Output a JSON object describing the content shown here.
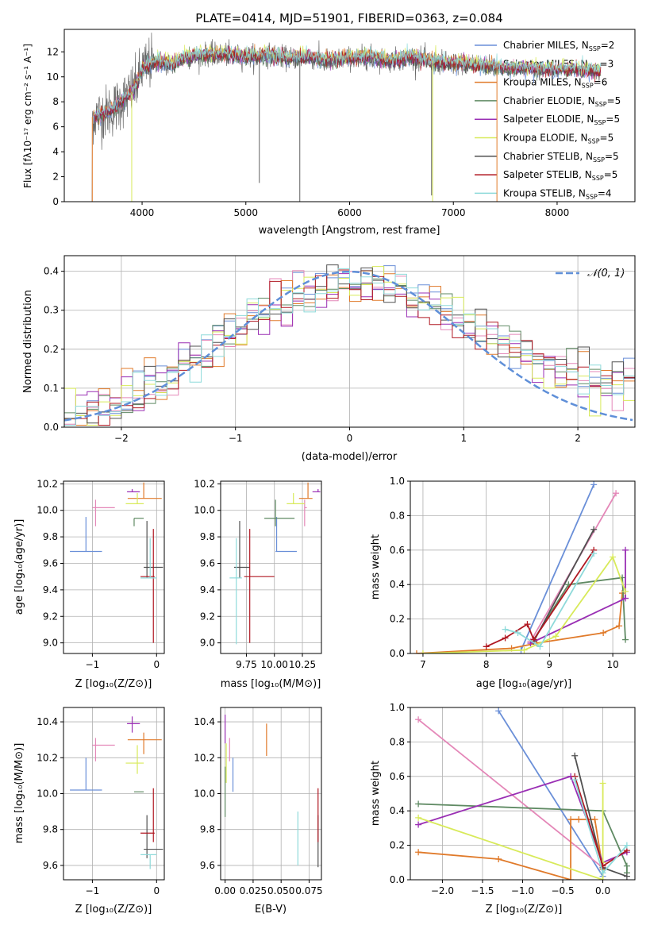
{
  "colors": {
    "chabrier_miles": "#6a8fd8",
    "salpeter_miles": "#e487b8",
    "kroupa_miles": "#e07a2a",
    "chabrier_elodie": "#5f8a63",
    "salpeter_elodie": "#9a2fb4",
    "kroupa_elodie": "#d8ea5a",
    "chabrier_stelib": "#505050",
    "salpeter_stelib": "#b01822",
    "kroupa_stelib": "#8edada",
    "normal": "#5f8fd8",
    "grid": "#b0b0b0"
  },
  "chart_data": [
    {
      "id": "spectrum",
      "type": "line",
      "title": "PLATE=0414, MJD=51901, FIBERID=0363, z=0.084",
      "xlabel": "wavelength [Angstrom, rest frame]",
      "ylabel": "Flux [fλ10⁻¹⁷ erg cm⁻² s⁻¹ A⁻¹]",
      "xlim": [
        3250,
        8750
      ],
      "ylim": [
        0,
        13.8
      ],
      "xticks": [
        4000,
        5000,
        6000,
        7000,
        8000
      ],
      "yticks": [
        0,
        2,
        4,
        6,
        8,
        10,
        12
      ],
      "grid": false,
      "legend_position": "top-right",
      "series": [
        {
          "name": "Chabrier MILES, N_SSP=2",
          "label_main": "Chabrier MILES, N",
          "label_sub": "SSP",
          "label_end": "=2",
          "color_key": "chabrier_miles"
        },
        {
          "name": "Salpeter MILES, N_SSP=3",
          "label_main": "Salpeter MILES, N",
          "label_sub": "SSP",
          "label_end": "=3",
          "color_key": "salpeter_miles"
        },
        {
          "name": "Kroupa MILES, N_SSP=6",
          "label_main": "Kroupa MILES, N",
          "label_sub": "SSP",
          "label_end": "=6",
          "color_key": "kroupa_miles"
        },
        {
          "name": "Chabrier ELODIE, N_SSP=5",
          "label_main": "Chabrier ELODIE, N",
          "label_sub": "SSP",
          "label_end": "=5",
          "color_key": "chabrier_elodie"
        },
        {
          "name": "Salpeter ELODIE, N_SSP=5",
          "label_main": "Salpeter ELODIE, N",
          "label_sub": "SSP",
          "label_end": "=5",
          "color_key": "salpeter_elodie"
        },
        {
          "name": "Kroupa ELODIE, N_SSP=5",
          "label_main": "Kroupa ELODIE, N",
          "label_sub": "SSP",
          "label_end": "=5",
          "color_key": "kroupa_elodie"
        },
        {
          "name": "Chabrier STELIB, N_SSP=5",
          "label_main": "Chabrier STELIB, N",
          "label_sub": "SSP",
          "label_end": "=5",
          "color_key": "chabrier_stelib"
        },
        {
          "name": "Salpeter STELIB, N_SSP=5",
          "label_main": "Salpeter STELIB, N",
          "label_sub": "SSP",
          "label_end": "=5",
          "color_key": "salpeter_stelib"
        },
        {
          "name": "Kroupa STELIB, N_SSP=4",
          "label_main": "Kroupa STELIB, N",
          "label_sub": "SSP",
          "label_end": "=4",
          "color_key": "kroupa_stelib"
        }
      ],
      "continuum": {
        "x": [
          3520,
          3600,
          3700,
          3800,
          3900,
          3950,
          4000,
          4100,
          4200,
          4300,
          4400,
          4600,
          4800,
          5000,
          5200,
          5400,
          5600,
          5800,
          6000,
          6200,
          6400,
          6600,
          6800,
          7000,
          7200,
          7400,
          7600,
          7800,
          8000,
          8200,
          8400
        ],
        "y": [
          6.8,
          7.0,
          7.3,
          8.0,
          8.8,
          9.4,
          10.6,
          11.2,
          11.2,
          11.0,
          11.5,
          11.8,
          11.8,
          11.6,
          11.8,
          11.5,
          11.6,
          11.3,
          11.5,
          11.6,
          11.3,
          11.6,
          11.2,
          11.1,
          11.0,
          10.8,
          10.7,
          10.7,
          10.6,
          10.6,
          10.5
        ]
      },
      "data_range": [
        3500,
        7420
      ],
      "model_range": [
        3520,
        8420
      ]
    },
    {
      "id": "residuals",
      "type": "histogram",
      "xlabel": "(data-model)/error",
      "ylabel": "Normed distribution",
      "xlim": [
        -2.5,
        2.5
      ],
      "ylim": [
        0,
        0.44
      ],
      "xticks": [
        -2,
        -1,
        0,
        1,
        2
      ],
      "yticks": [
        0.0,
        0.1,
        0.2,
        0.3,
        0.4
      ],
      "grid": true,
      "bin_width": 0.1,
      "legend": "𝒩(0, 1)",
      "legend_position": "top-right",
      "curve": {
        "type": "normal",
        "mean": 0,
        "sigma": 1
      }
    },
    {
      "id": "age_vs_Z",
      "type": "errorbar",
      "xlabel": "Z [log₁₀(Z/Z⊙)]",
      "ylabel": "age  [log₁₀(age/yr)]",
      "xlim": [
        -1.45,
        0.12
      ],
      "ylim": [
        8.92,
        10.22
      ],
      "xticks": [
        -1,
        0
      ],
      "yticks": [
        9.0,
        9.2,
        9.4,
        9.6,
        9.8,
        10.0,
        10.2
      ],
      "grid": true,
      "points": [
        {
          "c": "chabrier_miles",
          "x": -1.1,
          "xl": 0.25,
          "xh": 0.25,
          "y": 9.69,
          "yl": 0,
          "yh": 0.26
        },
        {
          "c": "salpeter_miles",
          "x": -0.95,
          "xl": 0.05,
          "xh": 0.3,
          "y": 10.02,
          "yl": 0.14,
          "yh": 0.06
        },
        {
          "c": "kroupa_miles",
          "x": -0.2,
          "xl": 0.25,
          "xh": 0.28,
          "y": 10.09,
          "yl": 0,
          "yh": 0.12
        },
        {
          "c": "chabrier_elodie",
          "x": -0.35,
          "xl": 0.0,
          "xh": 0.15,
          "y": 9.94,
          "yl": 0.06,
          "yh": 0.0
        },
        {
          "c": "salpeter_elodie",
          "x": -0.38,
          "xl": 0.08,
          "xh": 0.12,
          "y": 10.14,
          "yl": 0.0,
          "yh": 0.02
        },
        {
          "c": "kroupa_elodie",
          "x": -0.3,
          "xl": 0.18,
          "xh": 0.1,
          "y": 10.05,
          "yl": 0.0,
          "yh": 0.08
        },
        {
          "c": "chabrier_stelib",
          "x": -0.15,
          "xl": 0.05,
          "xh": 0.25,
          "y": 9.57,
          "yl": 0.08,
          "yh": 0.35
        },
        {
          "c": "salpeter_stelib",
          "x": -0.05,
          "xl": 0.2,
          "xh": 0.02,
          "y": 9.5,
          "yl": 0.5,
          "yh": 0.36
        },
        {
          "c": "kroupa_stelib",
          "x": -0.1,
          "xl": 0.15,
          "xh": 0.1,
          "y": 9.49,
          "yl": 0.0,
          "yh": 0.3
        }
      ]
    },
    {
      "id": "age_vs_mass",
      "type": "errorbar",
      "xlabel": "mass [log₁₀(M/M⊙)]",
      "ylabel": "",
      "xlim": [
        9.52,
        10.42
      ],
      "ylim": [
        8.92,
        10.22
      ],
      "xticks": [
        9.75,
        10.0,
        10.25
      ],
      "xtick_labels": [
        "9.75",
        "10.00",
        "10.25"
      ],
      "yticks": [
        9.0,
        9.2,
        9.4,
        9.6,
        9.8,
        10.0,
        10.2
      ],
      "grid": true,
      "points": [
        {
          "c": "chabrier_miles",
          "x": 10.02,
          "xl": 0.01,
          "xh": 0.18,
          "y": 9.69,
          "yl": 0,
          "yh": 0.26
        },
        {
          "c": "salpeter_miles",
          "x": 10.27,
          "xl": 0.0,
          "xh": 0.02,
          "y": 10.02,
          "yl": 0.14,
          "yh": 0.06
        },
        {
          "c": "kroupa_miles",
          "x": 10.3,
          "xl": 0.08,
          "xh": 0.04,
          "y": 10.09,
          "yl": 0,
          "yh": 0.12
        },
        {
          "c": "chabrier_elodie",
          "x": 10.01,
          "xl": 0.1,
          "xh": 0.17,
          "y": 9.94,
          "yl": 0.06,
          "yh": 0.14
        },
        {
          "c": "salpeter_elodie",
          "x": 10.39,
          "xl": 0.05,
          "xh": 0.02,
          "y": 10.14,
          "yl": 0.0,
          "yh": 0.02
        },
        {
          "c": "kroupa_elodie",
          "x": 10.17,
          "xl": 0.06,
          "xh": 0.1,
          "y": 10.05,
          "yl": 0.0,
          "yh": 0.08
        },
        {
          "c": "chabrier_stelib",
          "x": 9.69,
          "xl": 0.05,
          "xh": 0.09,
          "y": 9.57,
          "yl": 0.08,
          "yh": 0.35
        },
        {
          "c": "salpeter_stelib",
          "x": 9.78,
          "xl": 0.05,
          "xh": 0.22,
          "y": 9.5,
          "yl": 0.5,
          "yh": 0.36
        },
        {
          "c": "kroupa_stelib",
          "x": 9.66,
          "xl": 0.06,
          "xh": 0.05,
          "y": 9.49,
          "yl": 0.5,
          "yh": 0.3
        }
      ]
    },
    {
      "id": "weight_vs_age",
      "type": "line",
      "xlabel": "age  [log₁₀(age/yr)]",
      "ylabel": "mass weight",
      "xlim": [
        6.8,
        10.35
      ],
      "ylim": [
        0,
        1.0
      ],
      "xticks": [
        7,
        8,
        9,
        10
      ],
      "yticks": [
        0.0,
        0.2,
        0.4,
        0.6,
        0.8,
        1.0
      ],
      "grid": true,
      "series": [
        {
          "c": "chabrier_miles",
          "x": [
            8.55,
            9.7
          ],
          "y": [
            0.02,
            0.98
          ]
        },
        {
          "c": "salpeter_miles",
          "x": [
            8.7,
            10.05
          ],
          "y": [
            0.07,
            0.93
          ]
        },
        {
          "c": "kroupa_miles",
          "x": [
            6.9,
            8.4,
            8.8,
            9.85,
            10.1,
            10.15
          ],
          "y": [
            0.0,
            0.03,
            0.06,
            0.12,
            0.16,
            0.35
          ]
        },
        {
          "c": "chabrier_elodie",
          "x": [
            8.75,
            9.3,
            10.15,
            10.2
          ],
          "y": [
            0.08,
            0.4,
            0.44,
            0.08
          ]
        },
        {
          "c": "salpeter_elodie",
          "x": [
            8.7,
            10.2,
            10.2
          ],
          "y": [
            0.06,
            0.32,
            0.6
          ]
        },
        {
          "c": "kroupa_elodie",
          "x": [
            7.0,
            8.6,
            9.1,
            10.0,
            10.2
          ],
          "y": [
            0.0,
            0.02,
            0.1,
            0.56,
            0.36
          ]
        },
        {
          "c": "chabrier_stelib",
          "x": [
            8.75,
            9.7
          ],
          "y": [
            0.07,
            0.72
          ]
        },
        {
          "c": "salpeter_stelib",
          "x": [
            8.0,
            8.3,
            8.65,
            8.75,
            9.7
          ],
          "y": [
            0.04,
            0.09,
            0.17,
            0.08,
            0.6
          ]
        },
        {
          "c": "kroupa_stelib",
          "x": [
            8.3,
            8.5,
            8.85,
            9.7
          ],
          "y": [
            0.14,
            0.12,
            0.04,
            0.58
          ]
        }
      ]
    },
    {
      "id": "mass_vs_Z",
      "type": "errorbar",
      "xlabel": "Z [log₁₀(Z/Z⊙)]",
      "ylabel": "mass [log₁₀(M/M⊙)]",
      "xlim": [
        -1.45,
        0.12
      ],
      "ylim": [
        9.52,
        10.48
      ],
      "xticks": [
        -1,
        0
      ],
      "yticks": [
        9.6,
        9.8,
        10.0,
        10.2,
        10.4
      ],
      "grid": true,
      "points": [
        {
          "c": "chabrier_miles",
          "x": -1.1,
          "xl": 0.25,
          "xh": 0.25,
          "y": 10.02,
          "yl": 0,
          "yh": 0.18
        },
        {
          "c": "salpeter_miles",
          "x": -0.95,
          "xl": 0.05,
          "xh": 0.3,
          "y": 10.27,
          "yl": 0.09,
          "yh": 0.04
        },
        {
          "c": "kroupa_miles",
          "x": -0.2,
          "xl": 0.25,
          "xh": 0.28,
          "y": 10.3,
          "yl": 0.08,
          "yh": 0.04
        },
        {
          "c": "chabrier_elodie",
          "x": -0.35,
          "xl": 0.0,
          "xh": 0.15,
          "y": 10.01,
          "yl": 0.0,
          "yh": 0.0
        },
        {
          "c": "salpeter_elodie",
          "x": -0.38,
          "xl": 0.08,
          "xh": 0.12,
          "y": 10.39,
          "yl": 0.05,
          "yh": 0.04
        },
        {
          "c": "kroupa_elodie",
          "x": -0.3,
          "xl": 0.18,
          "xh": 0.1,
          "y": 10.17,
          "yl": 0.06,
          "yh": 0.1
        },
        {
          "c": "chabrier_stelib",
          "x": -0.15,
          "xl": 0.05,
          "xh": 0.25,
          "y": 9.69,
          "yl": 0.05,
          "yh": 0.19
        },
        {
          "c": "salpeter_stelib",
          "x": -0.05,
          "xl": 0.2,
          "xh": 0.02,
          "y": 9.78,
          "yl": 0.05,
          "yh": 0.25
        },
        {
          "c": "kroupa_stelib",
          "x": -0.1,
          "xl": 0.15,
          "xh": 0.1,
          "y": 9.66,
          "yl": 0.08,
          "yh": 0.0
        }
      ]
    },
    {
      "id": "mass_vs_ebv",
      "type": "errorbar",
      "xlabel": "E(B-V)",
      "ylabel": "",
      "xlim": [
        -0.004,
        0.086
      ],
      "ylim": [
        9.52,
        10.48
      ],
      "xticks": [
        0.0,
        0.025,
        0.05,
        0.075
      ],
      "xtick_labels": [
        "0.00",
        "0.025",
        "0.050",
        "0.075"
      ],
      "yticks": [
        9.6,
        9.8,
        10.0,
        10.2,
        10.4
      ],
      "grid": true,
      "points": [
        {
          "c": "chabrier_miles",
          "x": 0.007,
          "xl": 0,
          "xh": 0,
          "y": 10.11,
          "yl": 0.1,
          "yh": 0.09
        },
        {
          "c": "salpeter_miles",
          "x": 0.004,
          "xl": 0,
          "xh": 0,
          "y": 10.27,
          "yl": 0.09,
          "yh": 0.04
        },
        {
          "c": "kroupa_miles",
          "x": 0.037,
          "xl": 0,
          "xh": 0,
          "y": 10.3,
          "yl": 0.09,
          "yh": 0.09
        },
        {
          "c": "chabrier_elodie",
          "x": 0.0,
          "xl": 0,
          "xh": 0,
          "y": 9.99,
          "yl": 0.12,
          "yh": 0.16
        },
        {
          "c": "salpeter_elodie",
          "x": 0.0,
          "xl": 0,
          "xh": 0,
          "y": 10.36,
          "yl": 0.08,
          "yh": 0.08
        },
        {
          "c": "kroupa_elodie",
          "x": 0.001,
          "xl": 0,
          "xh": 0,
          "y": 10.2,
          "yl": 0.14,
          "yh": 0.08
        },
        {
          "c": "chabrier_stelib",
          "x": 0.083,
          "xl": 0,
          "xh": 0,
          "y": 9.69,
          "yl": 0.1,
          "yh": 0.19
        },
        {
          "c": "salpeter_stelib",
          "x": 0.083,
          "xl": 0,
          "xh": 0,
          "y": 9.78,
          "yl": 0.05,
          "yh": 0.25
        },
        {
          "c": "kroupa_stelib",
          "x": 0.065,
          "xl": 0,
          "xh": 0,
          "y": 9.7,
          "yl": 0.1,
          "yh": 0.2
        }
      ]
    },
    {
      "id": "weight_vs_Z",
      "type": "line",
      "xlabel": "Z [log₁₀(Z/Z⊙)]",
      "ylabel": "mass weight",
      "xlim": [
        -2.4,
        0.4
      ],
      "ylim": [
        0,
        1.0
      ],
      "xticks": [
        -2.0,
        -1.5,
        -1.0,
        -0.5,
        0.0
      ],
      "yticks": [
        0.0,
        0.2,
        0.4,
        0.6,
        0.8,
        1.0
      ],
      "grid": true,
      "series": [
        {
          "c": "chabrier_miles",
          "x": [
            -1.3,
            0.0
          ],
          "y": [
            0.98,
            0.02
          ]
        },
        {
          "c": "salpeter_miles",
          "x": [
            -2.3,
            0.0
          ],
          "y": [
            0.93,
            0.07
          ]
        },
        {
          "c": "kroupa_miles",
          "x": [
            -2.3,
            -1.3,
            -0.4,
            -0.4,
            -0.3,
            -0.1,
            0.0
          ],
          "y": [
            0.16,
            0.12,
            0.0,
            0.35,
            0.35,
            0.35,
            0.06
          ]
        },
        {
          "c": "chabrier_elodie",
          "x": [
            -2.3,
            0.0,
            0.3,
            0.3
          ],
          "y": [
            0.44,
            0.4,
            0.08,
            0.04
          ]
        },
        {
          "c": "salpeter_elodie",
          "x": [
            -2.3,
            -0.4,
            0.0,
            0.3
          ],
          "y": [
            0.32,
            0.6,
            0.1,
            0.16
          ]
        },
        {
          "c": "kroupa_elodie",
          "x": [
            -2.3,
            0.0,
            0.0,
            0.0
          ],
          "y": [
            0.36,
            0.0,
            0.56,
            0.1
          ]
        },
        {
          "c": "chabrier_stelib",
          "x": [
            -0.35,
            0.0,
            0.3
          ],
          "y": [
            0.72,
            0.07,
            0.02
          ]
        },
        {
          "c": "salpeter_stelib",
          "x": [
            -0.35,
            0.0,
            0.3
          ],
          "y": [
            0.6,
            0.08,
            0.17
          ]
        },
        {
          "c": "kroupa_stelib",
          "x": [
            -0.35,
            0.0,
            0.3
          ],
          "y": [
            0.58,
            0.04,
            0.2
          ]
        }
      ]
    }
  ]
}
